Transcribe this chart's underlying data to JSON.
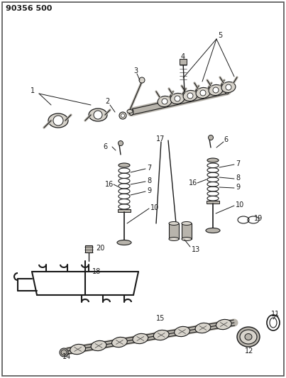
{
  "title": "90356 500",
  "bg_color": "#ffffff",
  "line_color": "#1a1a1a",
  "text_color": "#1a1a1a",
  "fill_light": "#d8d4cc",
  "fill_dark": "#909090",
  "fill_med": "#b8b4ac",
  "fig_width": 4.03,
  "fig_height": 5.33,
  "dpi": 100
}
